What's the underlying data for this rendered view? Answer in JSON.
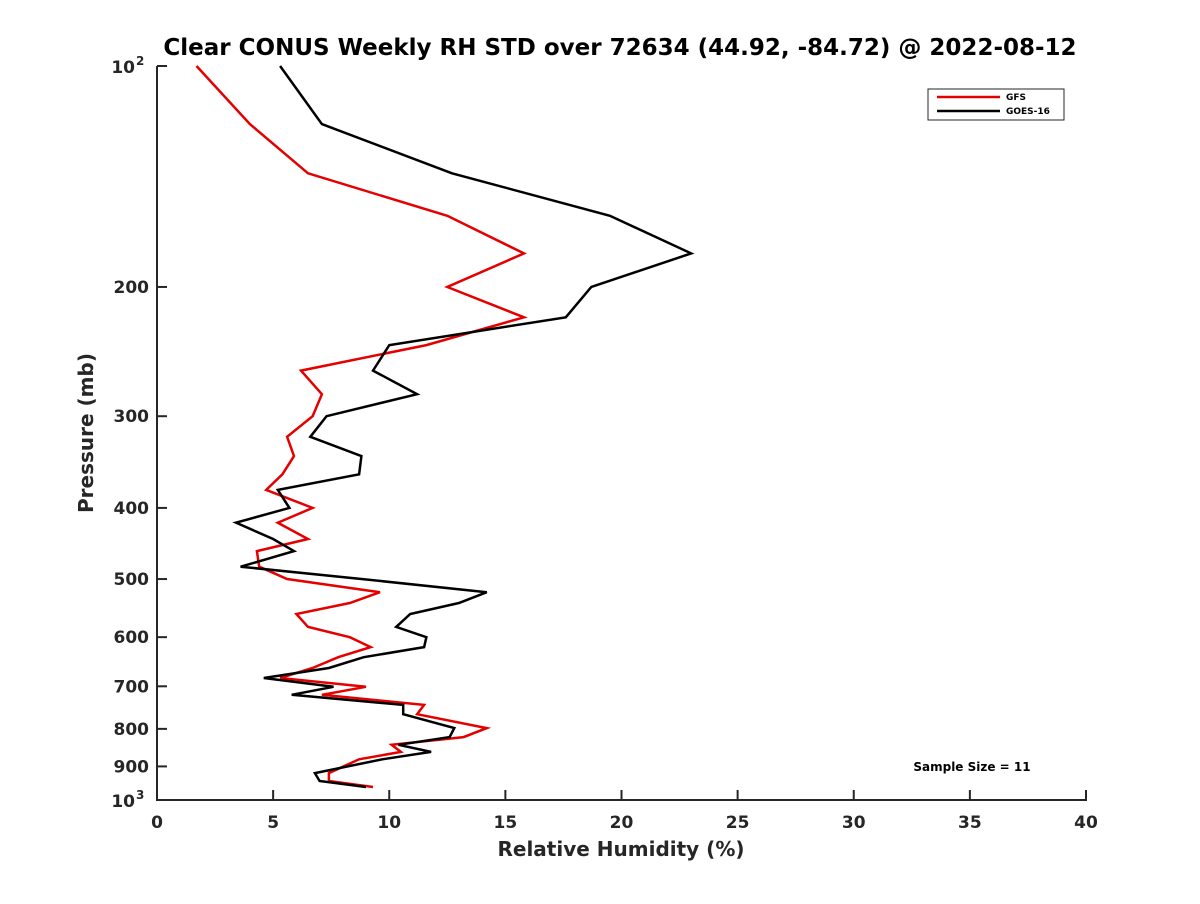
{
  "chart_data": {
    "type": "line",
    "title": "Clear CONUS Weekly RH STD over 72634 (44.92, -84.72) @ 2022-08-12",
    "xlabel": "Relative Humidity (%)",
    "ylabel": "Pressure (mb)",
    "xlim": [
      0,
      40
    ],
    "ylim": [
      100,
      1000
    ],
    "yscale": "log",
    "y_reversed": true,
    "grid": false,
    "x_ticks": [
      "0",
      "5",
      "10",
      "15",
      "20",
      "25",
      "30",
      "35",
      "40"
    ],
    "y_ticks": [
      {
        "value": 100,
        "base": "10",
        "exp": "2"
      },
      {
        "value": 200,
        "label": "200"
      },
      {
        "value": 300,
        "label": "300"
      },
      {
        "value": 400,
        "label": "400"
      },
      {
        "value": 500,
        "label": "500"
      },
      {
        "value": 600,
        "label": "600"
      },
      {
        "value": 700,
        "label": "700"
      },
      {
        "value": 800,
        "label": "800"
      },
      {
        "value": 900,
        "label": "900"
      },
      {
        "value": 1000,
        "base": "10",
        "exp": "3"
      }
    ],
    "legend_placement": "top-right",
    "pressure": [
      100,
      120,
      140,
      160,
      180,
      200,
      220,
      240,
      260,
      280,
      300,
      320,
      340,
      360,
      378,
      400,
      419,
      441,
      458,
      481,
      500,
      521,
      539,
      558,
      581,
      600,
      619,
      639,
      661,
      682,
      701,
      719,
      742,
      764,
      798,
      821,
      841,
      860,
      880,
      919,
      942,
      960
    ],
    "series": [
      {
        "name": "GFS",
        "color": "#e50000",
        "values": [
          1.7,
          4.0,
          6.5,
          12.5,
          15.8,
          12.5,
          15.8,
          11.6,
          6.2,
          7.1,
          6.7,
          5.6,
          5.9,
          5.4,
          4.7,
          6.7,
          5.2,
          6.5,
          4.3,
          4.4,
          5.6,
          9.6,
          8.3,
          6.0,
          6.5,
          8.3,
          9.2,
          7.8,
          6.7,
          5.3,
          9.0,
          7.1,
          11.5,
          11.2,
          14.2,
          13.2,
          10.1,
          10.5,
          8.7,
          7.4,
          7.4,
          9.3
        ]
      },
      {
        "name": "GOES-16",
        "color": "#000000",
        "values": [
          5.3,
          7.1,
          12.7,
          19.5,
          23.0,
          18.7,
          17.6,
          10.0,
          9.3,
          11.2,
          7.3,
          6.6,
          8.8,
          8.7,
          5.2,
          5.7,
          3.4,
          5.0,
          5.9,
          3.6,
          8.8,
          14.2,
          13.0,
          10.9,
          10.3,
          11.6,
          11.5,
          8.9,
          7.4,
          4.6,
          7.6,
          5.8,
          10.6,
          10.6,
          12.8,
          12.6,
          10.4,
          11.8,
          9.7,
          6.8,
          7.0,
          9.0
        ]
      }
    ],
    "annotation": "Sample Size = 11"
  }
}
